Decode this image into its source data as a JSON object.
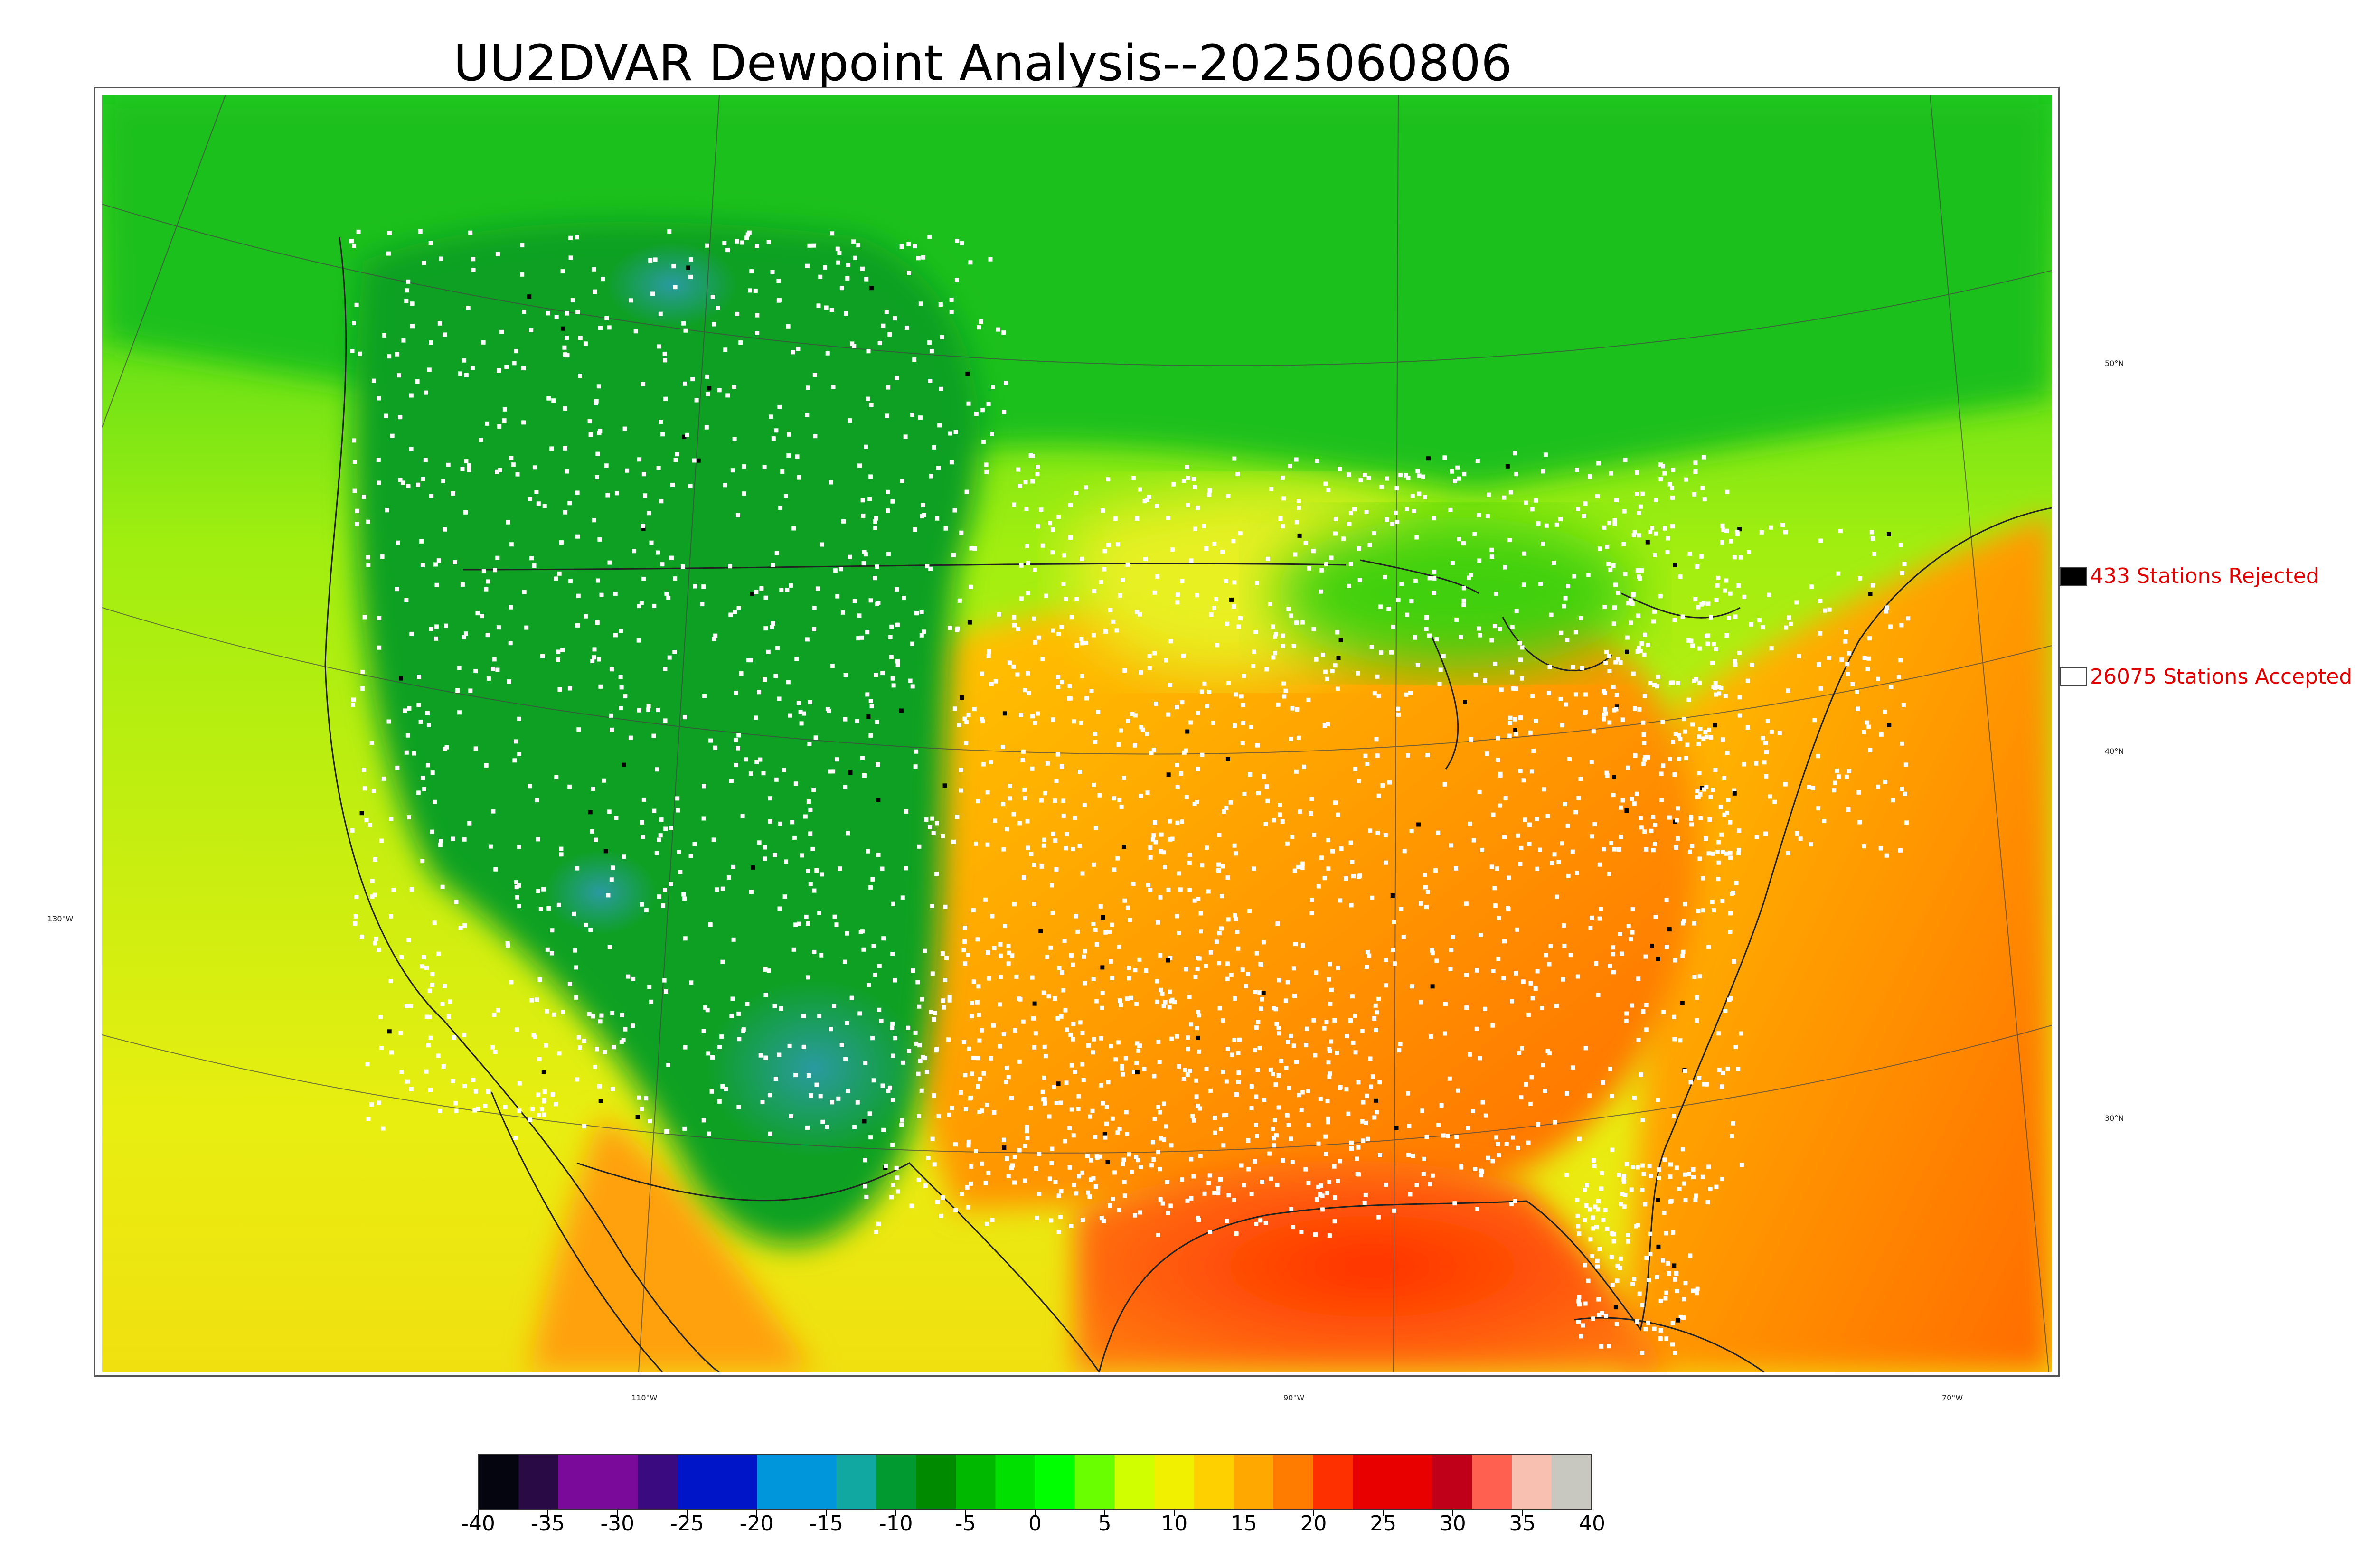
{
  "title": "UU2DVAR Dewpoint Analysis--2025060806",
  "latitude_labels": [
    "50°N",
    "40°N",
    "30°N"
  ],
  "longitude_labels": [
    "130°W",
    "110°W",
    "90°W",
    "70°W"
  ],
  "legend": {
    "rejected": {
      "label": "433 Stations Rejected",
      "color": "#000000"
    },
    "accepted": {
      "label": "26075 Stations Accepted",
      "color": "#ffffff"
    }
  },
  "colorbar": {
    "min": -40,
    "max": 40,
    "tick_labels": [
      "-40",
      "-35",
      "-30",
      "-25",
      "-20",
      "-15",
      "-10",
      "-5",
      "0",
      "5",
      "10",
      "15",
      "20",
      "25",
      "30",
      "35",
      "40"
    ],
    "colors": [
      "#050510",
      "#2a0a45",
      "#7a0a9a",
      "#7a0a9a",
      "#3a0a80",
      "#0014c8",
      "#0014c8",
      "#0096dc",
      "#0096dc",
      "#10a8a0",
      "#009a30",
      "#008a00",
      "#00b800",
      "#00e000",
      "#00ff00",
      "#6aff00",
      "#d0ff00",
      "#f0f000",
      "#ffd000",
      "#ffa800",
      "#ff7c00",
      "#ff3000",
      "#e80000",
      "#e80000",
      "#c00018",
      "#ff6050",
      "#f8c0b0",
      "#c8c8c0"
    ]
  },
  "colors": {
    "land_high_west": "#12a02c",
    "land_mid": "#3ccc10",
    "land_humid": "#f0d000",
    "ocean_pacific": "#c8e820",
    "ocean_atlantic": "#ff8a10",
    "gulf": "#f84010",
    "canada": "#18c018",
    "station_accepted": "#ffffff",
    "station_rejected": "#000000"
  }
}
